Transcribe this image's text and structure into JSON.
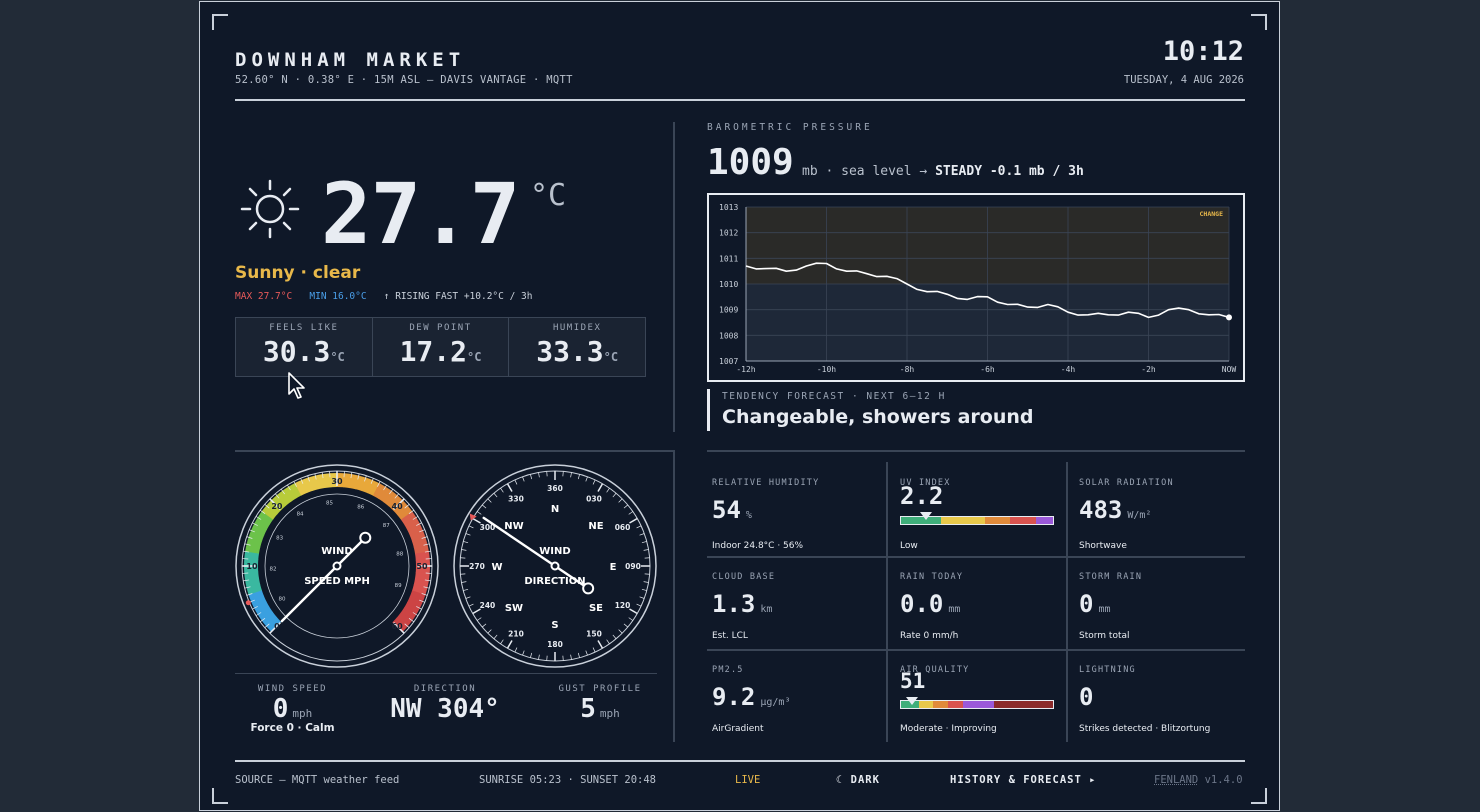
{
  "header": {
    "station": "DOWNHAM MARKET",
    "meta": "52.60° N · 0.38° E · 15M ASL — DAVIS VANTAGE · MQTT",
    "time": "10:12",
    "date": "TUESDAY, 4 AUG 2026"
  },
  "temperature": {
    "value": "27.7",
    "unit": "°C",
    "condition": "Sunny · clear",
    "max": "MAX 27.7°C",
    "min": "MIN 16.0°C",
    "trend": "↑ RISING FAST +10.2°C / 3h",
    "icon": "sun-icon"
  },
  "cards": [
    {
      "label": "FEELS LIKE",
      "value": "30.3",
      "unit": "°C"
    },
    {
      "label": "DEW POINT",
      "value": "17.2",
      "unit": "°C"
    },
    {
      "label": "HUMIDEX",
      "value": "33.3",
      "unit": "°C"
    }
  ],
  "pressure": {
    "heading": "BAROMETRIC PRESSURE",
    "value": "1009",
    "sub_prefix": "mb · sea level → ",
    "sub_bold": "STEADY -0.1 mb / 3h",
    "tendency_label": "TENDENCY FORECAST · NEXT 6–12 H",
    "tendency_text": "Changeable, showers around"
  },
  "chart_data": {
    "type": "line",
    "badge": "CHANGE",
    "x_ticks": [
      "-12h",
      "-10h",
      "-8h",
      "-6h",
      "-4h",
      "-2h",
      "NOW"
    ],
    "y_ticks": [
      "1013",
      "1012",
      "1011",
      "1010",
      "1009",
      "1008",
      "1007"
    ],
    "ylim": [
      1007,
      1013
    ],
    "xlim": [
      -12,
      0
    ],
    "series": [
      {
        "x": [
          -12,
          -11.5,
          -11,
          -10.5,
          -10,
          -9.5,
          -9,
          -8.5,
          -8,
          -7.5,
          -7,
          -6.5,
          -6,
          -5.5,
          -5,
          -4.5,
          -4,
          -3.5,
          -3,
          -2.5,
          -2,
          -1.5,
          -1,
          -0.5,
          0
        ],
        "values": [
          1010.7,
          1010.6,
          1010.5,
          1010.7,
          1010.8,
          1010.5,
          1010.4,
          1010.3,
          1010.0,
          1009.7,
          1009.6,
          1009.4,
          1009.5,
          1009.2,
          1009.1,
          1009.2,
          1008.9,
          1008.8,
          1008.8,
          1008.9,
          1008.7,
          1009.0,
          1009.0,
          1008.8,
          1008.7
        ]
      }
    ],
    "accent_color": "#e8b84a"
  },
  "wind": {
    "speed_gauge_title": "WIND",
    "speed_gauge_sub": "SPEED MPH",
    "speed_ticks": [
      "0",
      "10",
      "20",
      "30",
      "40",
      "50",
      "60"
    ],
    "speed_minor_ticks": [
      "80",
      "82",
      "83",
      "84",
      "85",
      "86",
      "87",
      "88",
      "89"
    ],
    "dir_gauge_title": "WIND",
    "dir_gauge_sub": "DIRECTION",
    "dir_degree_ticks": [
      "360",
      "030",
      "060",
      "090",
      "120",
      "150",
      "180",
      "210",
      "240",
      "270",
      "300",
      "330"
    ],
    "dir_cardinals": [
      "N",
      "NE",
      "E",
      "SE",
      "S",
      "SW",
      "W",
      "NW"
    ],
    "speed_label": "WIND SPEED",
    "speed_value": "0",
    "speed_unit": "mph",
    "speed_desc": "Force 0 · Calm",
    "direction_label": "DIRECTION",
    "direction_value": "NW 304°",
    "direction_deg": 304,
    "gust_label": "GUST PROFILE",
    "gust_value": "5",
    "gust_unit": "mph"
  },
  "metrics": [
    {
      "label": "RELATIVE HUMIDITY",
      "value": "54",
      "unit": "%",
      "sub": "Indoor 24.8°C · 56%"
    },
    {
      "label": "UV INDEX",
      "value": "2.2",
      "unit": "",
      "sub": "Low"
    },
    {
      "label": "SOLAR RADIATION",
      "value": "483",
      "unit": "W/m²",
      "sub": "Shortwave"
    },
    {
      "label": "CLOUD BASE",
      "value": "1.3",
      "unit": "km",
      "sub": "Est. LCL"
    },
    {
      "label": "RAIN TODAY",
      "value": "0.0",
      "unit": "mm",
      "sub": "Rate 0 mm/h"
    },
    {
      "label": "STORM RAIN",
      "value": "0",
      "unit": "mm",
      "sub": "Storm total"
    },
    {
      "label": "PM2.5",
      "value": "9.2",
      "unit": "µg/m³",
      "sub": "AirGradient"
    },
    {
      "label": "AIR QUALITY",
      "value": "51",
      "unit": "",
      "sub": "Moderate · Improving"
    },
    {
      "label": "LIGHTNING",
      "value": "0",
      "unit": "",
      "sub": "Strikes detected · Blitzortung"
    }
  ],
  "footer": {
    "source": "SOURCE — MQTT weather feed",
    "sun": "SUNRISE 05:23 · SUNSET 20:48",
    "live": "LIVE",
    "dark": "☾ DARK",
    "history": "HISTORY & FORECAST ▸",
    "version_name": "FENLAND",
    "version": "v1.4.0"
  }
}
